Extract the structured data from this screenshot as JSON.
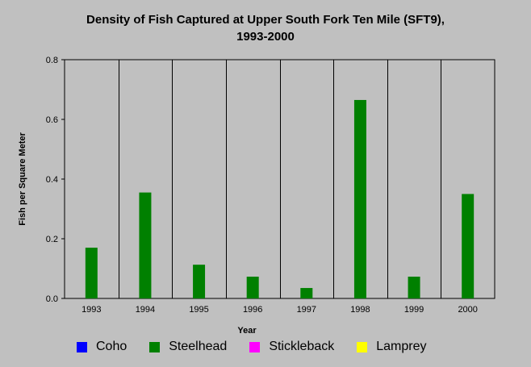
{
  "chart_data": {
    "type": "bar",
    "title": "Density of Fish Captured at Upper South Fork Ten Mile (SFT9), 1993-2000",
    "title_lines": [
      "Density of Fish Captured at Upper South Fork Ten Mile (SFT9),",
      "1993-2000"
    ],
    "xlabel": "Year",
    "ylabel": "Fish per Square Meter",
    "categories": [
      "1993",
      "1994",
      "1995",
      "1996",
      "1997",
      "1998",
      "1999",
      "2000"
    ],
    "series": [
      {
        "name": "Coho",
        "color": "#0000ff",
        "values": [
          0,
          0,
          0,
          0,
          0,
          0,
          0,
          0
        ]
      },
      {
        "name": "Steelhead",
        "color": "#008000",
        "values": [
          0.17,
          0.355,
          0.113,
          0.073,
          0.035,
          0.665,
          0.073,
          0.35
        ]
      },
      {
        "name": "Stickleback",
        "color": "#ff00ff",
        "values": [
          0,
          0,
          0,
          0,
          0,
          0,
          0,
          0
        ]
      },
      {
        "name": "Lamprey",
        "color": "#ffff00",
        "values": [
          0,
          0,
          0,
          0,
          0,
          0,
          0,
          0
        ]
      }
    ],
    "ylim": [
      0,
      0.8
    ],
    "yticks": [
      "0.0",
      "0.2",
      "0.4",
      "0.6",
      "0.8"
    ],
    "grid": "vertical",
    "legend_position": "bottom"
  },
  "colors": {
    "background": "#c0c0c0",
    "plot_area": "#c0c0c0",
    "grid": "#000000"
  }
}
